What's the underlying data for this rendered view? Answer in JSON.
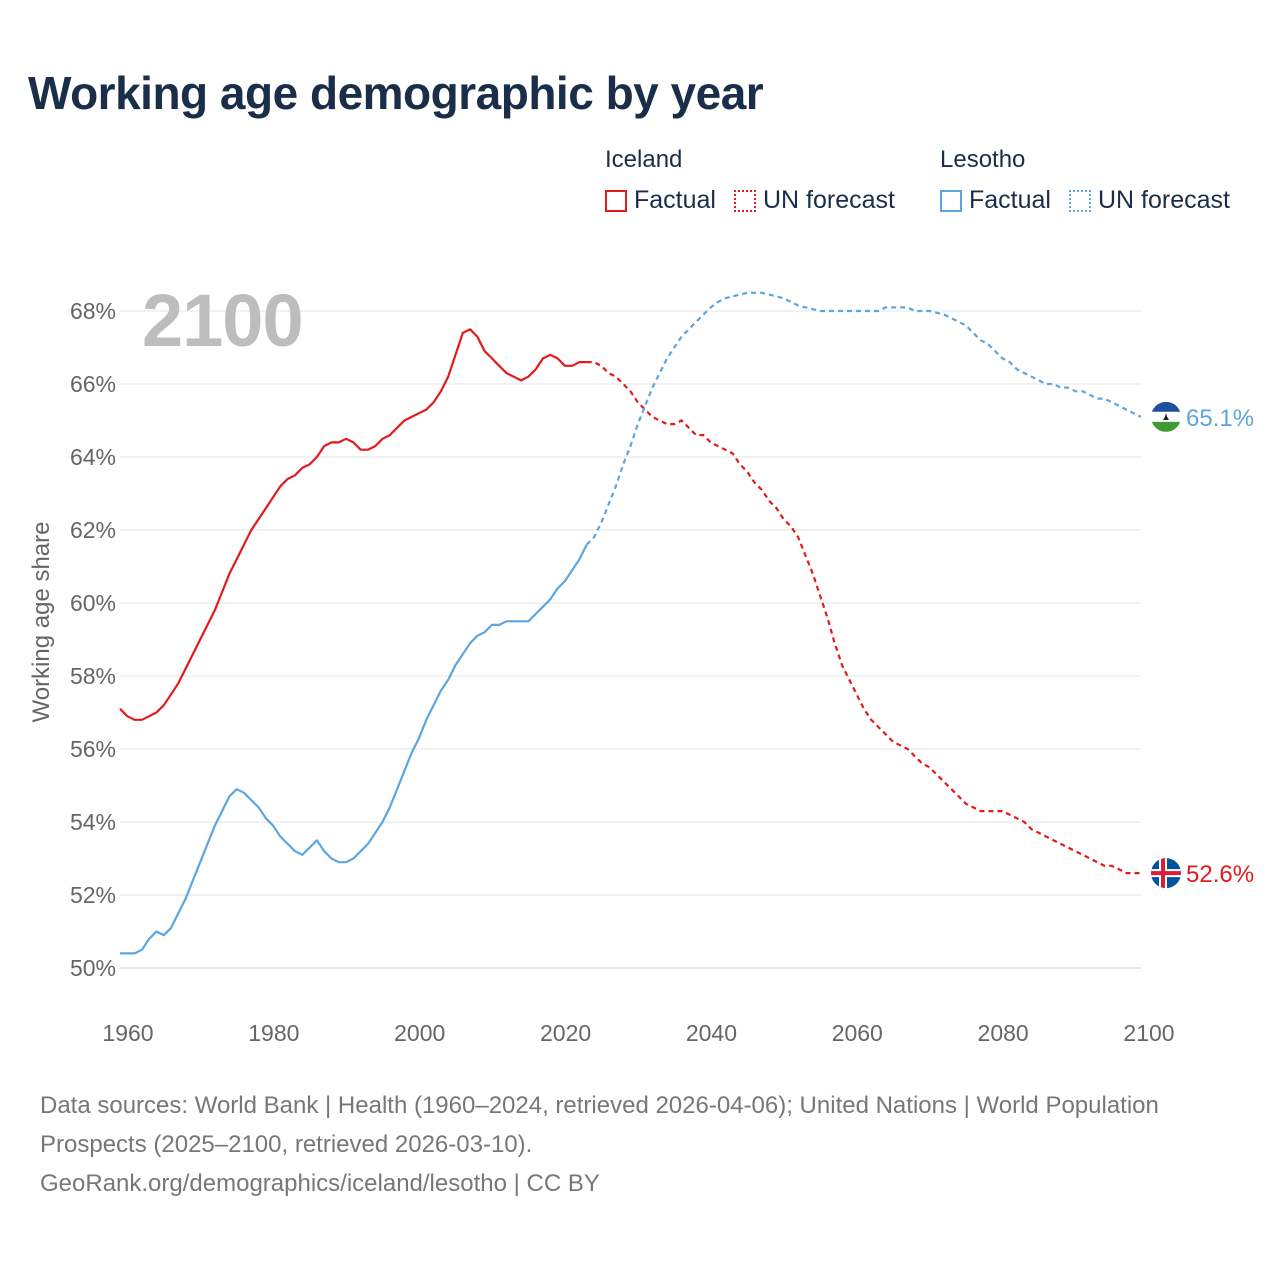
{
  "header": {
    "title": "Working age demographic by year"
  },
  "legend": {
    "groups": [
      {
        "name": "Iceland",
        "factual_label": "Factual",
        "forecast_label": "UN forecast",
        "color": "#e31a1c"
      },
      {
        "name": "Lesotho",
        "factual_label": "Factual",
        "forecast_label": "UN forecast",
        "color": "#5da5e0"
      }
    ]
  },
  "current_year": "2100",
  "chart_data": {
    "type": "line",
    "title": "Working age demographic by year",
    "xlabel": "",
    "ylabel": "Working age share",
    "xlim": [
      1960,
      2100
    ],
    "ylim": [
      50,
      68
    ],
    "x_ticks": [
      "1960",
      "1980",
      "2000",
      "2020",
      "2040",
      "2060",
      "2080",
      "2100"
    ],
    "y_ticks": [
      "50%",
      "52%",
      "54%",
      "56%",
      "58%",
      "60%",
      "62%",
      "64%",
      "66%",
      "68%"
    ],
    "factual_range": [
      1960,
      2024
    ],
    "forecast_range": [
      2025,
      2100
    ],
    "series": [
      {
        "name": "Iceland",
        "color": "#e31a1c",
        "end_label": "52.6%",
        "points": [
          [
            1960,
            57.1
          ],
          [
            1961,
            56.9
          ],
          [
            1962,
            56.8
          ],
          [
            1963,
            56.8
          ],
          [
            1964,
            56.9
          ],
          [
            1965,
            57.0
          ],
          [
            1966,
            57.2
          ],
          [
            1967,
            57.5
          ],
          [
            1968,
            57.8
          ],
          [
            1969,
            58.2
          ],
          [
            1970,
            58.6
          ],
          [
            1971,
            59.0
          ],
          [
            1972,
            59.4
          ],
          [
            1973,
            59.8
          ],
          [
            1974,
            60.3
          ],
          [
            1975,
            60.8
          ],
          [
            1976,
            61.2
          ],
          [
            1977,
            61.6
          ],
          [
            1978,
            62.0
          ],
          [
            1979,
            62.3
          ],
          [
            1980,
            62.6
          ],
          [
            1981,
            62.9
          ],
          [
            1982,
            63.2
          ],
          [
            1983,
            63.4
          ],
          [
            1984,
            63.5
          ],
          [
            1985,
            63.7
          ],
          [
            1986,
            63.8
          ],
          [
            1987,
            64.0
          ],
          [
            1988,
            64.3
          ],
          [
            1989,
            64.4
          ],
          [
            1990,
            64.4
          ],
          [
            1991,
            64.5
          ],
          [
            1992,
            64.4
          ],
          [
            1993,
            64.2
          ],
          [
            1994,
            64.2
          ],
          [
            1995,
            64.3
          ],
          [
            1996,
            64.5
          ],
          [
            1997,
            64.6
          ],
          [
            1998,
            64.8
          ],
          [
            1999,
            65.0
          ],
          [
            2000,
            65.1
          ],
          [
            2001,
            65.2
          ],
          [
            2002,
            65.3
          ],
          [
            2003,
            65.5
          ],
          [
            2004,
            65.8
          ],
          [
            2005,
            66.2
          ],
          [
            2006,
            66.8
          ],
          [
            2007,
            67.4
          ],
          [
            2008,
            67.5
          ],
          [
            2009,
            67.3
          ],
          [
            2010,
            66.9
          ],
          [
            2011,
            66.7
          ],
          [
            2012,
            66.5
          ],
          [
            2013,
            66.3
          ],
          [
            2014,
            66.2
          ],
          [
            2015,
            66.1
          ],
          [
            2016,
            66.2
          ],
          [
            2017,
            66.4
          ],
          [
            2018,
            66.7
          ],
          [
            2019,
            66.8
          ],
          [
            2020,
            66.7
          ],
          [
            2021,
            66.5
          ],
          [
            2022,
            66.5
          ],
          [
            2023,
            66.6
          ],
          [
            2024,
            66.6
          ],
          [
            2025,
            66.6
          ],
          [
            2026,
            66.5
          ],
          [
            2027,
            66.3
          ],
          [
            2028,
            66.2
          ],
          [
            2029,
            66.0
          ],
          [
            2030,
            65.8
          ],
          [
            2031,
            65.5
          ],
          [
            2032,
            65.3
          ],
          [
            2033,
            65.1
          ],
          [
            2034,
            65.0
          ],
          [
            2035,
            64.9
          ],
          [
            2036,
            64.9
          ],
          [
            2037,
            65.0
          ],
          [
            2038,
            64.8
          ],
          [
            2039,
            64.6
          ],
          [
            2040,
            64.6
          ],
          [
            2041,
            64.4
          ],
          [
            2042,
            64.3
          ],
          [
            2043,
            64.2
          ],
          [
            2044,
            64.1
          ],
          [
            2045,
            63.8
          ],
          [
            2046,
            63.6
          ],
          [
            2047,
            63.3
          ],
          [
            2048,
            63.1
          ],
          [
            2049,
            62.8
          ],
          [
            2050,
            62.6
          ],
          [
            2051,
            62.3
          ],
          [
            2052,
            62.1
          ],
          [
            2053,
            61.8
          ],
          [
            2054,
            61.3
          ],
          [
            2055,
            60.8
          ],
          [
            2056,
            60.2
          ],
          [
            2057,
            59.6
          ],
          [
            2058,
            58.9
          ],
          [
            2059,
            58.3
          ],
          [
            2060,
            57.9
          ],
          [
            2061,
            57.5
          ],
          [
            2062,
            57.1
          ],
          [
            2063,
            56.8
          ],
          [
            2064,
            56.6
          ],
          [
            2065,
            56.4
          ],
          [
            2066,
            56.2
          ],
          [
            2067,
            56.1
          ],
          [
            2068,
            56.0
          ],
          [
            2069,
            55.8
          ],
          [
            2070,
            55.6
          ],
          [
            2071,
            55.5
          ],
          [
            2072,
            55.3
          ],
          [
            2073,
            55.1
          ],
          [
            2074,
            54.9
          ],
          [
            2075,
            54.7
          ],
          [
            2076,
            54.5
          ],
          [
            2077,
            54.4
          ],
          [
            2078,
            54.3
          ],
          [
            2079,
            54.3
          ],
          [
            2080,
            54.3
          ],
          [
            2081,
            54.3
          ],
          [
            2082,
            54.2
          ],
          [
            2083,
            54.1
          ],
          [
            2084,
            54.0
          ],
          [
            2085,
            53.8
          ],
          [
            2086,
            53.7
          ],
          [
            2087,
            53.6
          ],
          [
            2088,
            53.5
          ],
          [
            2089,
            53.4
          ],
          [
            2090,
            53.3
          ],
          [
            2091,
            53.2
          ],
          [
            2092,
            53.1
          ],
          [
            2093,
            53.0
          ],
          [
            2094,
            52.9
          ],
          [
            2095,
            52.8
          ],
          [
            2096,
            52.8
          ],
          [
            2097,
            52.7
          ],
          [
            2098,
            52.6
          ],
          [
            2099,
            52.6
          ],
          [
            2100,
            52.6
          ]
        ]
      },
      {
        "name": "Lesotho",
        "color": "#5da5e0",
        "end_label": "65.1%",
        "points": [
          [
            1960,
            50.4
          ],
          [
            1961,
            50.4
          ],
          [
            1962,
            50.4
          ],
          [
            1963,
            50.5
          ],
          [
            1964,
            50.8
          ],
          [
            1965,
            51.0
          ],
          [
            1966,
            50.9
          ],
          [
            1967,
            51.1
          ],
          [
            1968,
            51.5
          ],
          [
            1969,
            51.9
          ],
          [
            1970,
            52.4
          ],
          [
            1971,
            52.9
          ],
          [
            1972,
            53.4
          ],
          [
            1973,
            53.9
          ],
          [
            1974,
            54.3
          ],
          [
            1975,
            54.7
          ],
          [
            1976,
            54.9
          ],
          [
            1977,
            54.8
          ],
          [
            1978,
            54.6
          ],
          [
            1979,
            54.4
          ],
          [
            1980,
            54.1
          ],
          [
            1981,
            53.9
          ],
          [
            1982,
            53.6
          ],
          [
            1983,
            53.4
          ],
          [
            1984,
            53.2
          ],
          [
            1985,
            53.1
          ],
          [
            1986,
            53.3
          ],
          [
            1987,
            53.5
          ],
          [
            1988,
            53.2
          ],
          [
            1989,
            53.0
          ],
          [
            1990,
            52.9
          ],
          [
            1991,
            52.9
          ],
          [
            1992,
            53.0
          ],
          [
            1993,
            53.2
          ],
          [
            1994,
            53.4
          ],
          [
            1995,
            53.7
          ],
          [
            1996,
            54.0
          ],
          [
            1997,
            54.4
          ],
          [
            1998,
            54.9
          ],
          [
            1999,
            55.4
          ],
          [
            2000,
            55.9
          ],
          [
            2001,
            56.3
          ],
          [
            2002,
            56.8
          ],
          [
            2003,
            57.2
          ],
          [
            2004,
            57.6
          ],
          [
            2005,
            57.9
          ],
          [
            2006,
            58.3
          ],
          [
            2007,
            58.6
          ],
          [
            2008,
            58.9
          ],
          [
            2009,
            59.1
          ],
          [
            2010,
            59.2
          ],
          [
            2011,
            59.4
          ],
          [
            2012,
            59.4
          ],
          [
            2013,
            59.5
          ],
          [
            2014,
            59.5
          ],
          [
            2015,
            59.5
          ],
          [
            2016,
            59.5
          ],
          [
            2017,
            59.7
          ],
          [
            2018,
            59.9
          ],
          [
            2019,
            60.1
          ],
          [
            2020,
            60.4
          ],
          [
            2021,
            60.6
          ],
          [
            2022,
            60.9
          ],
          [
            2023,
            61.2
          ],
          [
            2024,
            61.6
          ],
          [
            2025,
            61.8
          ],
          [
            2026,
            62.2
          ],
          [
            2027,
            62.7
          ],
          [
            2028,
            63.2
          ],
          [
            2029,
            63.8
          ],
          [
            2030,
            64.3
          ],
          [
            2031,
            64.9
          ],
          [
            2032,
            65.4
          ],
          [
            2033,
            65.9
          ],
          [
            2034,
            66.3
          ],
          [
            2035,
            66.7
          ],
          [
            2036,
            67.0
          ],
          [
            2037,
            67.3
          ],
          [
            2038,
            67.5
          ],
          [
            2039,
            67.7
          ],
          [
            2040,
            67.9
          ],
          [
            2041,
            68.1
          ],
          [
            2042,
            68.25
          ],
          [
            2043,
            68.35
          ],
          [
            2044,
            68.4
          ],
          [
            2045,
            68.45
          ],
          [
            2046,
            68.5
          ],
          [
            2047,
            68.5
          ],
          [
            2048,
            68.5
          ],
          [
            2049,
            68.45
          ],
          [
            2050,
            68.4
          ],
          [
            2051,
            68.35
          ],
          [
            2052,
            68.25
          ],
          [
            2053,
            68.15
          ],
          [
            2054,
            68.1
          ],
          [
            2055,
            68.05
          ],
          [
            2056,
            68.0
          ],
          [
            2057,
            68.0
          ],
          [
            2058,
            68.0
          ],
          [
            2059,
            68.0
          ],
          [
            2060,
            68.0
          ],
          [
            2061,
            68.0
          ],
          [
            2062,
            68.0
          ],
          [
            2063,
            68.0
          ],
          [
            2064,
            68.0
          ],
          [
            2065,
            68.1
          ],
          [
            2066,
            68.1
          ],
          [
            2067,
            68.1
          ],
          [
            2068,
            68.1
          ],
          [
            2069,
            68.0
          ],
          [
            2070,
            68.0
          ],
          [
            2071,
            68.0
          ],
          [
            2072,
            67.95
          ],
          [
            2073,
            67.9
          ],
          [
            2074,
            67.8
          ],
          [
            2075,
            67.7
          ],
          [
            2076,
            67.6
          ],
          [
            2077,
            67.4
          ],
          [
            2078,
            67.2
          ],
          [
            2079,
            67.1
          ],
          [
            2080,
            66.9
          ],
          [
            2081,
            66.7
          ],
          [
            2082,
            66.6
          ],
          [
            2083,
            66.4
          ],
          [
            2084,
            66.3
          ],
          [
            2085,
            66.2
          ],
          [
            2086,
            66.1
          ],
          [
            2087,
            66.0
          ],
          [
            2088,
            66.0
          ],
          [
            2089,
            65.9
          ],
          [
            2090,
            65.9
          ],
          [
            2091,
            65.8
          ],
          [
            2092,
            65.8
          ],
          [
            2093,
            65.7
          ],
          [
            2094,
            65.6
          ],
          [
            2095,
            65.6
          ],
          [
            2096,
            65.5
          ],
          [
            2097,
            65.4
          ],
          [
            2098,
            65.3
          ],
          [
            2099,
            65.2
          ],
          [
            2100,
            65.1
          ]
        ]
      }
    ]
  },
  "footer": {
    "line1": "Data sources: World Bank | Health (1960–2024, retrieved 2026-04-06); United Nations | World Population Prospects (2025–2100, retrieved 2026-03-10).",
    "line2": "GeoRank.org/demographics/iceland/lesotho | CC BY"
  }
}
